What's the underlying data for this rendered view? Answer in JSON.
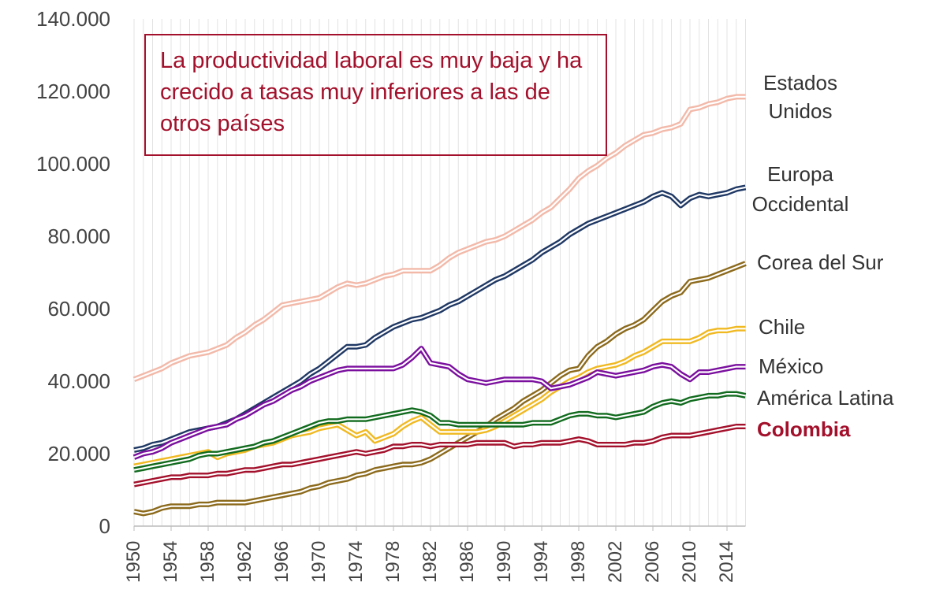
{
  "chart_data": {
    "type": "line",
    "annotation": "La productividad laboral es muy baja y ha crecido a tasas muy inferiores a las de otros países",
    "x": [
      1950,
      1951,
      1952,
      1953,
      1954,
      1955,
      1956,
      1957,
      1958,
      1959,
      1960,
      1961,
      1962,
      1963,
      1964,
      1965,
      1966,
      1967,
      1968,
      1969,
      1970,
      1971,
      1972,
      1973,
      1974,
      1975,
      1976,
      1977,
      1978,
      1979,
      1980,
      1981,
      1982,
      1983,
      1984,
      1985,
      1986,
      1987,
      1988,
      1989,
      1990,
      1991,
      1992,
      1993,
      1994,
      1995,
      1996,
      1997,
      1998,
      1999,
      2000,
      2001,
      2002,
      2003,
      2004,
      2005,
      2006,
      2007,
      2008,
      2009,
      2010,
      2011,
      2012,
      2013,
      2014,
      2015,
      2016
    ],
    "xlim": [
      1950,
      2016
    ],
    "xticks": [
      1950,
      1954,
      1958,
      1962,
      1966,
      1970,
      1974,
      1978,
      1982,
      1986,
      1990,
      1994,
      1998,
      2002,
      2006,
      2010,
      2014
    ],
    "ylim": [
      0,
      140000
    ],
    "yticks": [
      0,
      {
        "value": 20000,
        "label": "20.000"
      },
      {
        "value": 40000,
        "label": "40.000"
      },
      {
        "value": 60000,
        "label": "60.000"
      },
      {
        "value": 80000,
        "label": "80.000"
      },
      {
        "value": 100000,
        "label": "100.000"
      },
      {
        "value": 120000,
        "label": "120.000"
      },
      {
        "value": 140000,
        "label": "140.000"
      }
    ],
    "grid": true,
    "series": [
      {
        "name": "Estados Unidos",
        "color": "#f2b9a9",
        "values": [
          40500,
          41500,
          42500,
          43500,
          45000,
          46000,
          47000,
          47500,
          48000,
          49000,
          50000,
          52000,
          53500,
          55500,
          57000,
          59000,
          61000,
          61500,
          62000,
          62500,
          63000,
          64500,
          66000,
          67000,
          66500,
          67000,
          68000,
          69000,
          69500,
          70500,
          70500,
          70500,
          70500,
          72000,
          74000,
          75500,
          76500,
          77500,
          78500,
          79000,
          80000,
          81500,
          83000,
          84500,
          86500,
          88000,
          90500,
          93000,
          96000,
          98000,
          99500,
          101500,
          103000,
          105000,
          106500,
          108000,
          108500,
          109500,
          110000,
          111000,
          115000,
          115500,
          116500,
          117000,
          118000,
          118500,
          118500
        ]
      },
      {
        "name": "Europa Occidental",
        "color": "#1f3864",
        "values": [
          21000,
          21500,
          22500,
          23000,
          24000,
          25000,
          26000,
          26500,
          27000,
          27500,
          28500,
          29500,
          31000,
          32500,
          34000,
          35500,
          37000,
          38500,
          40000,
          42000,
          43500,
          45500,
          47500,
          49500,
          49500,
          50000,
          52000,
          53500,
          55000,
          56000,
          57000,
          57500,
          58500,
          59500,
          61000,
          62000,
          63500,
          65000,
          66500,
          68000,
          69000,
          70500,
          72000,
          73500,
          75500,
          77000,
          78500,
          80500,
          82000,
          83500,
          84500,
          85500,
          86500,
          87500,
          88500,
          89500,
          91000,
          92000,
          91000,
          88500,
          90500,
          91500,
          91000,
          91500,
          92000,
          93000,
          93500
        ]
      },
      {
        "name": "Corea del Sur",
        "color": "#8c6a1c",
        "values": [
          4000,
          3500,
          4000,
          5000,
          5500,
          5500,
          5500,
          6000,
          6000,
          6500,
          6500,
          6500,
          6500,
          7000,
          7500,
          8000,
          8500,
          9000,
          9500,
          10500,
          11000,
          12000,
          12500,
          13000,
          14000,
          14500,
          15500,
          16000,
          16500,
          17000,
          17000,
          17500,
          18500,
          20000,
          21500,
          23000,
          24500,
          26000,
          27500,
          29500,
          31000,
          32500,
          34500,
          36000,
          37500,
          39500,
          41500,
          43000,
          43500,
          47000,
          49500,
          51000,
          53000,
          54500,
          55500,
          57000,
          59500,
          62000,
          63500,
          64500,
          67500,
          68000,
          68500,
          69500,
          70500,
          71500,
          72500
        ]
      },
      {
        "name": "Chile",
        "color": "#f0b922",
        "values": [
          16500,
          17000,
          17500,
          18000,
          18500,
          19000,
          19500,
          20000,
          20500,
          19000,
          20000,
          20500,
          21000,
          22000,
          22500,
          23000,
          24000,
          25000,
          25500,
          26000,
          27000,
          27500,
          28000,
          26500,
          25000,
          26000,
          23500,
          24500,
          25500,
          27500,
          29000,
          30000,
          28000,
          26000,
          26000,
          26000,
          26000,
          26000,
          26500,
          27500,
          29000,
          30500,
          32000,
          33500,
          35000,
          37000,
          38500,
          40000,
          41000,
          42500,
          43500,
          44000,
          44500,
          45500,
          47000,
          48000,
          49500,
          51000,
          51000,
          51000,
          51000,
          52000,
          53500,
          54000,
          54000,
          54500,
          54500
        ]
      },
      {
        "name": "México",
        "color": "#7a0f9e",
        "values": [
          19000,
          20000,
          20500,
          21500,
          23000,
          24000,
          25000,
          26000,
          27000,
          27500,
          28000,
          29500,
          30500,
          32000,
          33500,
          34500,
          36000,
          37500,
          38500,
          40000,
          41000,
          42000,
          43000,
          43500,
          43500,
          43500,
          43500,
          43500,
          43500,
          44500,
          46500,
          49000,
          45000,
          44500,
          44000,
          42000,
          40500,
          40000,
          39500,
          40000,
          40500,
          40500,
          40500,
          40500,
          40000,
          38000,
          38500,
          39000,
          40000,
          41000,
          42500,
          42000,
          41500,
          42000,
          42500,
          43000,
          44000,
          44500,
          44000,
          42000,
          40500,
          42500,
          42500,
          43000,
          43500,
          44000,
          44000
        ]
      },
      {
        "name": "América Latina",
        "color": "#116b1e",
        "values": [
          15500,
          16000,
          16500,
          17000,
          17500,
          18000,
          18500,
          19500,
          20000,
          20000,
          20500,
          21000,
          21500,
          22000,
          23000,
          23500,
          24500,
          25500,
          26500,
          27500,
          28500,
          29000,
          29000,
          29500,
          29500,
          29500,
          30000,
          30500,
          31000,
          31500,
          32000,
          31500,
          30500,
          28500,
          28500,
          28000,
          28000,
          28000,
          28000,
          28000,
          28000,
          28000,
          28000,
          28500,
          28500,
          28500,
          29500,
          30500,
          31000,
          31000,
          30500,
          30500,
          30000,
          30500,
          31000,
          31500,
          33000,
          34000,
          34500,
          34000,
          35000,
          35500,
          36000,
          36000,
          36500,
          36500,
          36000
        ]
      },
      {
        "name": "Colombia",
        "color": "#a3102b",
        "values": [
          11500,
          12000,
          12500,
          13000,
          13500,
          13500,
          14000,
          14000,
          14000,
          14500,
          14500,
          15000,
          15500,
          15500,
          16000,
          16500,
          17000,
          17000,
          17500,
          18000,
          18500,
          19000,
          19500,
          20000,
          20500,
          20000,
          20500,
          21000,
          22000,
          22000,
          22500,
          22500,
          22000,
          22500,
          22500,
          22500,
          22500,
          23000,
          23000,
          23000,
          23000,
          22000,
          22500,
          22500,
          23000,
          23000,
          23000,
          23500,
          24000,
          23500,
          22500,
          22500,
          22500,
          22500,
          23000,
          23000,
          23500,
          24500,
          25000,
          25000,
          25000,
          25500,
          26000,
          26500,
          27000,
          27500,
          27500
        ]
      }
    ]
  }
}
